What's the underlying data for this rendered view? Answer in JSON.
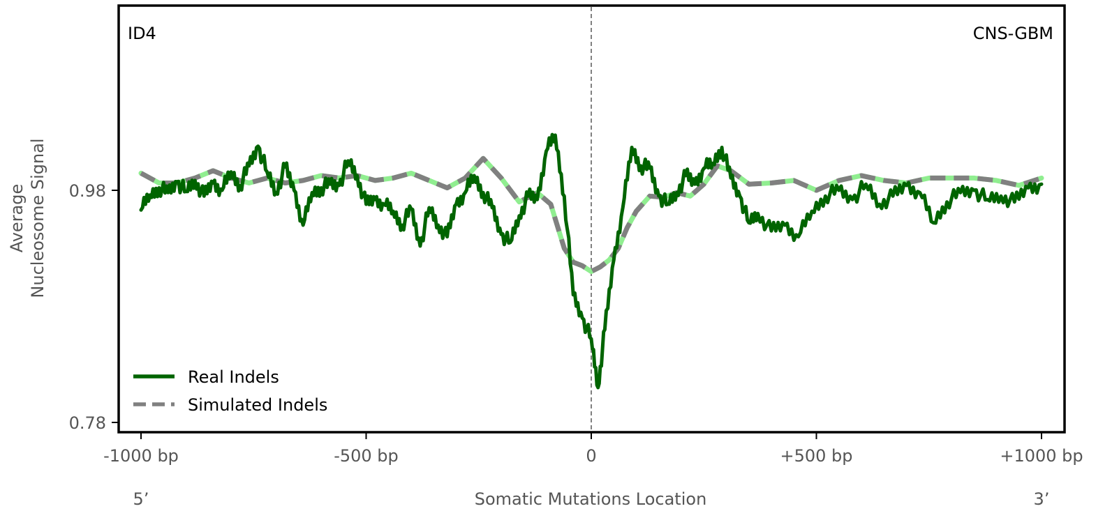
{
  "chart_data": {
    "type": "line",
    "title": "",
    "annotations": {
      "top_left": "ID4",
      "top_right": "CNS-GBM"
    },
    "xlabel": "Somatic Mutations Location",
    "ylabel_lines": [
      "Average",
      "Nucleosome Signal"
    ],
    "x_ticks": [
      {
        "value": -1000,
        "label": "-1000 bp"
      },
      {
        "value": -500,
        "label": "-500 bp"
      },
      {
        "value": 0,
        "label": "0"
      },
      {
        "value": 500,
        "label": "+500 bp"
      },
      {
        "value": 1000,
        "label": "+1000 bp"
      }
    ],
    "y_ticks": [
      {
        "value": 0.78,
        "label": "0.78"
      },
      {
        "value": 0.98,
        "label": "0.98"
      }
    ],
    "strand_labels": {
      "left": "5’",
      "right": "3’"
    },
    "xlim": [
      -1000,
      1000
    ],
    "ylim": [
      0.77,
      1.2
    ],
    "grid": false,
    "reference_line_x": 0,
    "legend": {
      "position": "bottom-left"
    },
    "series": [
      {
        "name": "Real Indels",
        "color": "#006400",
        "style": "solid",
        "x": [
          -1000,
          -980,
          -960,
          -940,
          -920,
          -900,
          -880,
          -860,
          -840,
          -820,
          -800,
          -780,
          -760,
          -740,
          -720,
          -700,
          -680,
          -660,
          -640,
          -620,
          -600,
          -580,
          -560,
          -540,
          -520,
          -500,
          -480,
          -460,
          -440,
          -420,
          -400,
          -380,
          -360,
          -340,
          -320,
          -300,
          -280,
          -260,
          -240,
          -220,
          -200,
          -180,
          -160,
          -140,
          -120,
          -100,
          -80,
          -60,
          -40,
          -20,
          0,
          15,
          30,
          50,
          70,
          90,
          110,
          130,
          150,
          170,
          190,
          210,
          230,
          250,
          270,
          290,
          310,
          330,
          350,
          370,
          400,
          430,
          460,
          490,
          520,
          550,
          580,
          610,
          640,
          670,
          700,
          730,
          760,
          790,
          820,
          850,
          880,
          910,
          940,
          970,
          1000
        ],
        "values": [
          0.963,
          0.976,
          0.982,
          0.978,
          0.987,
          0.979,
          0.988,
          0.975,
          0.986,
          0.98,
          0.995,
          0.984,
          1.0,
          1.016,
          0.995,
          0.978,
          0.999,
          0.98,
          0.95,
          0.978,
          0.982,
          0.985,
          0.984,
          1.004,
          0.992,
          0.968,
          0.972,
          0.968,
          0.962,
          0.95,
          0.964,
          0.932,
          0.965,
          0.95,
          0.94,
          0.968,
          0.978,
          0.992,
          0.978,
          0.965,
          0.942,
          0.935,
          0.958,
          0.975,
          0.972,
          1.012,
          1.025,
          0.975,
          0.89,
          0.87,
          0.852,
          0.81,
          0.86,
          0.92,
          0.965,
          1.015,
          1.0,
          0.998,
          0.975,
          0.968,
          0.978,
          0.992,
          0.985,
          0.998,
          1.002,
          1.015,
          0.99,
          0.975,
          0.952,
          0.96,
          0.945,
          0.95,
          0.94,
          0.962,
          0.975,
          0.98,
          0.972,
          0.985,
          0.968,
          0.975,
          0.984,
          0.978,
          0.952,
          0.97,
          0.978,
          0.98,
          0.972,
          0.975,
          0.97,
          0.982,
          0.985
        ]
      },
      {
        "name": "Simulated Indels",
        "color": "#808080",
        "highlight_color": "#90EE90",
        "style": "dashed",
        "x": [
          -1000,
          -960,
          -920,
          -880,
          -840,
          -800,
          -760,
          -720,
          -680,
          -640,
          -600,
          -560,
          -520,
          -480,
          -440,
          -400,
          -360,
          -320,
          -280,
          -240,
          -200,
          -160,
          -120,
          -90,
          -60,
          -40,
          -20,
          0,
          20,
          40,
          60,
          80,
          100,
          130,
          160,
          190,
          220,
          250,
          280,
          310,
          350,
          400,
          450,
          500,
          550,
          600,
          650,
          700,
          750,
          800,
          850,
          900,
          950,
          1000
        ],
        "values": [
          0.994,
          0.986,
          0.986,
          0.99,
          0.996,
          0.99,
          0.986,
          0.99,
          0.986,
          0.988,
          0.992,
          0.99,
          0.992,
          0.988,
          0.99,
          0.994,
          0.988,
          0.982,
          0.99,
          1.006,
          0.99,
          0.97,
          0.978,
          0.968,
          0.93,
          0.918,
          0.915,
          0.91,
          0.914,
          0.92,
          0.93,
          0.948,
          0.962,
          0.975,
          0.974,
          0.978,
          0.975,
          0.985,
          1.0,
          0.996,
          0.985,
          0.986,
          0.988,
          0.98,
          0.988,
          0.992,
          0.988,
          0.986,
          0.99,
          0.99,
          0.99,
          0.988,
          0.984,
          0.99
        ]
      }
    ]
  }
}
